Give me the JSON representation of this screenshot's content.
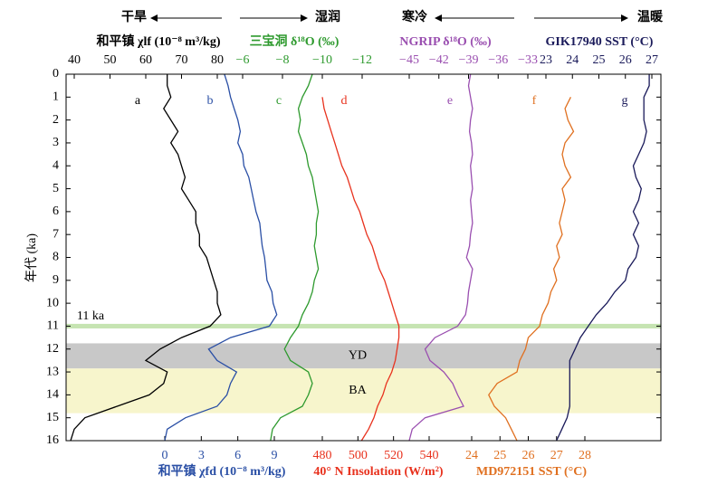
{
  "chart_data": {
    "type": "multi-axis-line",
    "ylabel": "年代 (ka)",
    "ylim": [
      0,
      16
    ],
    "yticks": [
      0,
      1,
      2,
      3,
      4,
      5,
      6,
      7,
      8,
      9,
      10,
      11,
      12,
      13,
      14,
      15,
      16
    ],
    "y_inverted": true,
    "header": [
      "干旱",
      "湿润",
      "寒冷",
      "温暖"
    ],
    "bands": [
      {
        "label": "11 ka",
        "from": 10.9,
        "to": 11.1,
        "color": "#c6e4b2"
      },
      {
        "label": "YD",
        "from": 11.75,
        "to": 12.85,
        "color": "#c8c8c8"
      },
      {
        "label": "BA",
        "from": 12.85,
        "to": 14.8,
        "color": "#f7f5cc"
      }
    ],
    "ages": [
      0,
      0.5,
      1,
      1.5,
      2,
      2.5,
      3,
      3.5,
      4,
      4.5,
      5,
      5.5,
      6,
      6.5,
      7,
      7.5,
      8,
      8.5,
      9,
      9.5,
      10,
      10.5,
      11,
      11.5,
      12,
      12.5,
      13,
      13.5,
      14,
      14.5,
      15,
      15.5,
      16
    ],
    "series": [
      {
        "name": "和平镇 χlf (10⁻⁸ m³/kg)",
        "label": "a",
        "color": "#000000",
        "axis": "top",
        "xticks": [
          40,
          50,
          60,
          70,
          80
        ],
        "values": [
          66,
          66,
          67,
          65,
          67,
          69,
          67,
          69,
          70,
          71,
          70,
          72,
          74,
          74,
          75,
          75,
          77,
          78,
          79,
          80,
          80,
          81,
          78,
          70,
          64,
          60,
          66,
          65,
          61,
          52,
          43,
          40,
          39
        ]
      },
      {
        "name": "和平镇 χfd (10⁻⁸ m³/kg)",
        "label": "b",
        "color": "#2a4fa5",
        "axis": "bottom",
        "xticks": [
          0,
          3,
          6,
          9
        ],
        "values": [
          4.9,
          5.2,
          5.4,
          5.7,
          6.0,
          6.2,
          6.0,
          6.4,
          6.5,
          6.9,
          7.1,
          7.3,
          7.5,
          7.8,
          7.9,
          8.0,
          8.2,
          8.3,
          8.4,
          8.8,
          8.9,
          9.2,
          8.6,
          5.4,
          3.6,
          4.3,
          5.9,
          5.4,
          5.1,
          4.3,
          1.7,
          0.2,
          0
        ]
      },
      {
        "name": "三宝洞 δ¹⁸O (‰)",
        "label": "c",
        "color": "#2e9a2e",
        "axis": "top",
        "xticks": [
          {
            "value": -6,
            "label": "−6"
          },
          {
            "value": -8,
            "label": "−8"
          },
          {
            "value": -10,
            "label": "−10"
          },
          {
            "value": -12,
            "label": "−12"
          }
        ],
        "values": [
          -9.5,
          -9.3,
          -9.0,
          -8.8,
          -8.9,
          -8.8,
          -9.0,
          -9.2,
          -9.3,
          -9.5,
          -9.6,
          -9.7,
          -9.8,
          -9.7,
          -9.7,
          -9.6,
          -9.7,
          -9.8,
          -9.6,
          -9.5,
          -9.3,
          -9.0,
          -8.8,
          -8.4,
          -8.1,
          -8.4,
          -9.3,
          -9.5,
          -9.3,
          -9.0,
          -7.9,
          -7.5,
          -7.4
        ]
      },
      {
        "name": "40° N Insolation (W/m²)",
        "label": "d",
        "color": "#e8321e",
        "axis": "bottom",
        "xticks": [
          480,
          500,
          520,
          540
        ],
        "values": [
          null,
          null,
          480,
          481,
          483,
          485,
          487,
          489,
          491,
          494,
          496,
          498,
          501,
          503,
          505,
          508,
          510,
          512,
          515,
          517,
          519,
          521,
          523,
          523,
          522,
          521,
          519,
          516,
          514,
          511,
          509,
          506,
          502
        ]
      },
      {
        "name": "NGRIP δ¹⁸O (‰)",
        "label": "e",
        "color": "#9a4fb0",
        "axis": "top",
        "xticks": [
          {
            "value": -45,
            "label": "−45"
          },
          {
            "value": -42,
            "label": "−42"
          },
          {
            "value": -39,
            "label": "−39"
          },
          {
            "value": -36,
            "label": "−36"
          },
          {
            "value": -33,
            "label": "−33"
          }
        ],
        "values": [
          -38.8,
          -39.0,
          -38.8,
          -38.6,
          -38.8,
          -38.9,
          -38.7,
          -38.6,
          -38.8,
          -38.7,
          -38.6,
          -38.8,
          -38.7,
          -38.6,
          -38.8,
          -38.9,
          -39.2,
          -38.6,
          -38.8,
          -39.0,
          -39.1,
          -39.3,
          -40.1,
          -42.4,
          -43.4,
          -42.9,
          -41.5,
          -40.6,
          -40.1,
          -39.5,
          -43.4,
          -44.7,
          -45.0
        ]
      },
      {
        "name": "MD972151 SST (°C)",
        "label": "f",
        "color": "#e07020",
        "axis": "bottom",
        "xticks": [
          24,
          25,
          26,
          27,
          28
        ],
        "values": [
          null,
          null,
          27.5,
          27.3,
          27.4,
          27.6,
          27.3,
          27.2,
          27.3,
          27.5,
          27.2,
          27.3,
          27.2,
          27.1,
          27.2,
          27.0,
          27.1,
          26.9,
          27.0,
          26.8,
          26.7,
          26.5,
          26.4,
          26.0,
          25.9,
          25.7,
          25.6,
          24.9,
          24.6,
          24.8,
          25.2,
          25.4,
          25.6
        ]
      },
      {
        "name": "GIK17940 SST (°C)",
        "label": "g",
        "color": "#1a1a5a",
        "axis": "top",
        "xticks": [
          23,
          24,
          25,
          26,
          27
        ],
        "values": [
          26.9,
          26.9,
          26.7,
          26.7,
          26.7,
          26.8,
          26.7,
          26.5,
          26.3,
          26.4,
          26.6,
          26.5,
          26.3,
          26.5,
          26.3,
          26.5,
          26.4,
          26.1,
          26.0,
          25.6,
          25.3,
          24.9,
          24.6,
          24.3,
          24.1,
          23.9,
          23.9,
          23.9,
          23.9,
          23.9,
          23.8,
          23.6,
          23.4
        ]
      }
    ]
  }
}
